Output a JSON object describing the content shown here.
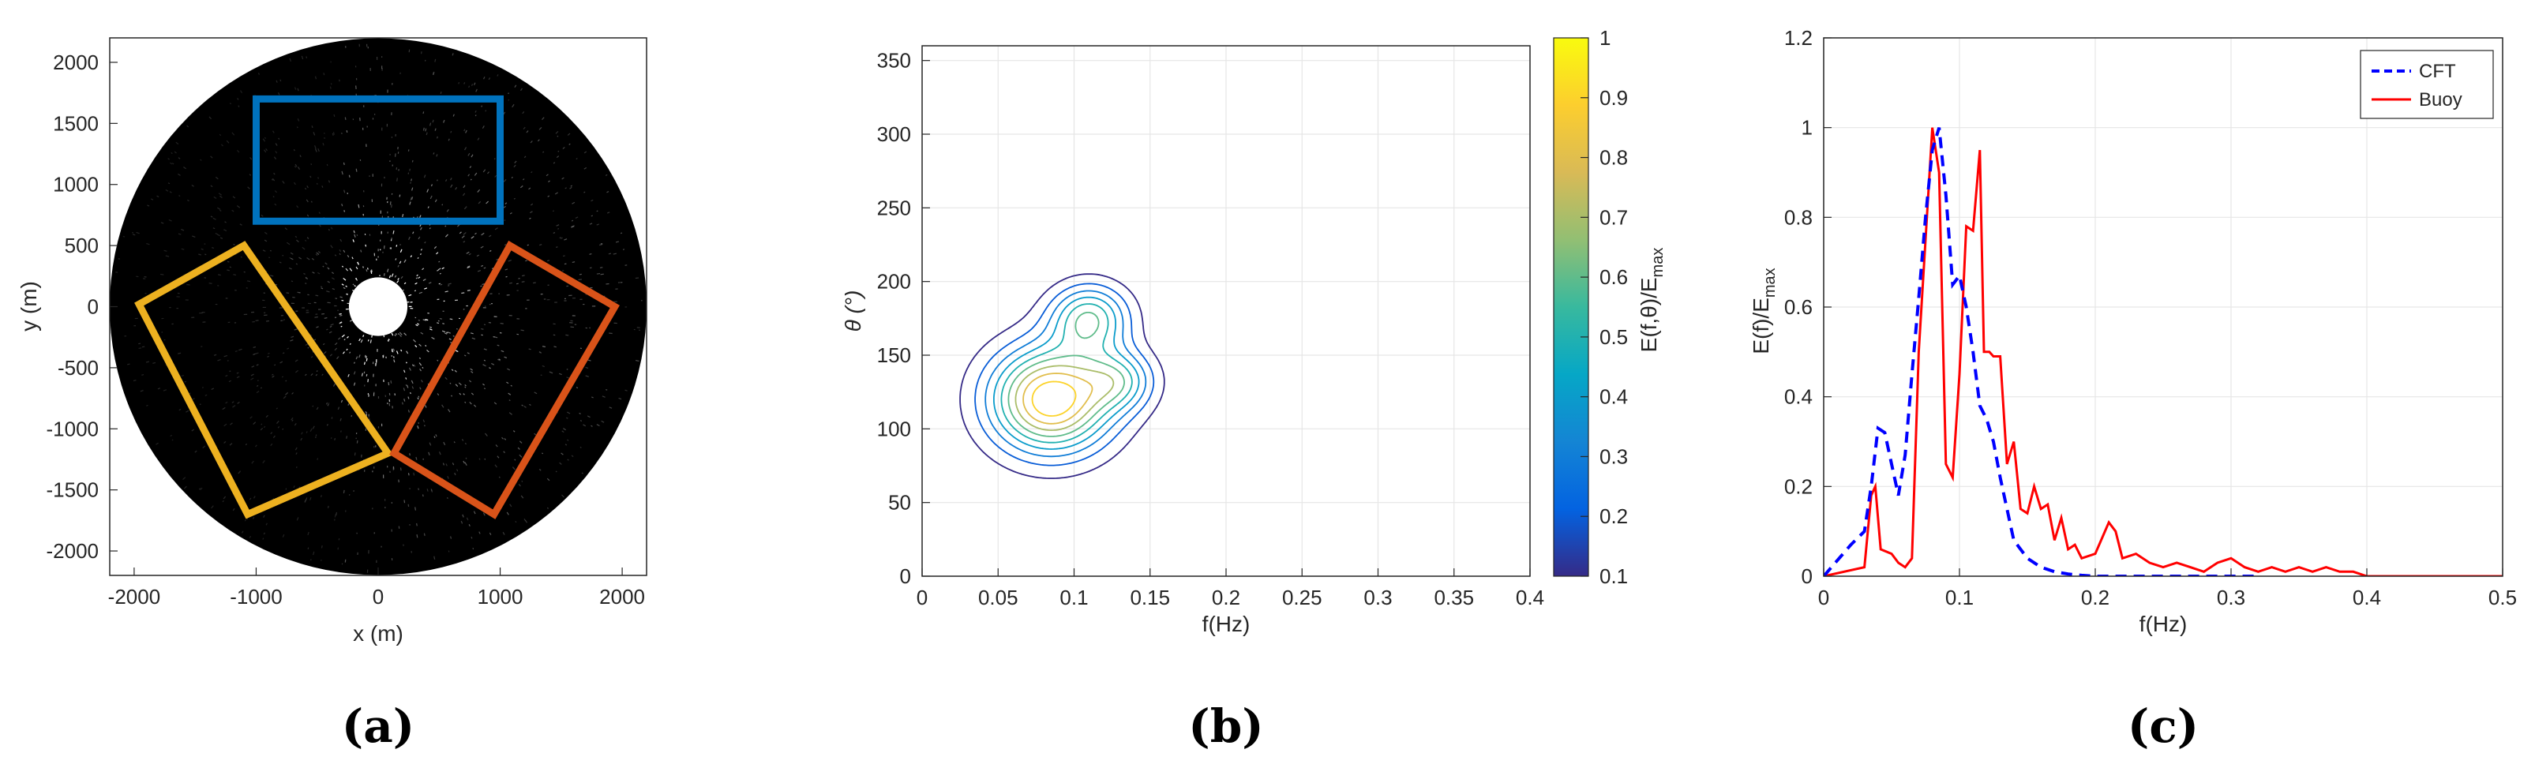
{
  "panels": {
    "a": {
      "label": "(a)"
    },
    "b": {
      "label": "(b)"
    },
    "c": {
      "label": "(c)"
    }
  },
  "colors": {
    "blue_box": "#0072BD",
    "orange_box": "#EDB120",
    "red_box": "#D95319",
    "cft": "#0000FF",
    "buoy": "#FF0000",
    "radar_bg": "#000000"
  },
  "chart_data": [
    {
      "type": "image",
      "panel": "a",
      "xlabel": "x (m)",
      "ylabel": "y (m)",
      "xlim": [
        -2200,
        2200
      ],
      "ylim": [
        -2200,
        2200
      ],
      "xticks": [
        -2000,
        -1000,
        0,
        1000,
        2000
      ],
      "yticks": [
        -2000,
        -1500,
        -1000,
        -500,
        0,
        500,
        1000,
        1500,
        2000
      ],
      "radar_radius": 2200,
      "blind_zone_radius": 240,
      "boxes": [
        {
          "name": "blue",
          "corners": [
            [
              -1000,
              1700
            ],
            [
              1000,
              1700
            ],
            [
              1000,
              700
            ],
            [
              -1000,
              700
            ]
          ]
        },
        {
          "name": "orange",
          "corners": [
            [
              -1960,
              20
            ],
            [
              -1100,
              500
            ],
            [
              80,
              -1200
            ],
            [
              -1070,
              -1700
            ]
          ]
        },
        {
          "name": "red",
          "corners": [
            [
              1080,
              500
            ],
            [
              1940,
              0
            ],
            [
              950,
              -1700
            ],
            [
              130,
              -1200
            ]
          ]
        }
      ]
    },
    {
      "type": "contour",
      "panel": "b",
      "xlabel": "f(Hz)",
      "ylabel": "θ (°)",
      "colorbar_label": "E(f,θ)/E",
      "colorbar_label_sub": "max",
      "xlim": [
        0,
        0.4
      ],
      "ylim": [
        0,
        360
      ],
      "xticks": [
        0,
        0.05,
        0.1,
        0.15,
        0.2,
        0.25,
        0.3,
        0.35,
        0.4
      ],
      "yticks": [
        0,
        50,
        100,
        150,
        200,
        250,
        300,
        350
      ],
      "colorbar_ticks": [
        0.1,
        0.2,
        0.3,
        0.4,
        0.5,
        0.6,
        0.7,
        0.8,
        0.9,
        1
      ],
      "levels": [
        0.1,
        0.2,
        0.3,
        0.4,
        0.5,
        0.6,
        0.7,
        0.8,
        0.9
      ],
      "peaks": [
        {
          "f": 0.085,
          "theta": 120,
          "amp": 0.95,
          "sf": 0.028,
          "st": 25
        },
        {
          "f": 0.11,
          "theta": 175,
          "amp": 0.55,
          "sf": 0.018,
          "st": 16
        },
        {
          "f": 0.13,
          "theta": 133,
          "amp": 0.38,
          "sf": 0.016,
          "st": 14
        }
      ]
    },
    {
      "type": "line",
      "panel": "c",
      "xlabel": "f(Hz)",
      "ylabel": "E(f)/E",
      "ylabel_sub": "max",
      "xlim": [
        0,
        0.5
      ],
      "ylim": [
        0,
        1.2
      ],
      "xticks": [
        0,
        0.1,
        0.2,
        0.3,
        0.4,
        0.5
      ],
      "yticks": [
        0,
        0.2,
        0.4,
        0.6,
        0.8,
        1,
        1.2
      ],
      "legend_position": "top-right",
      "series": [
        {
          "name": "CFT",
          "style": "dashed",
          "x": [
            0,
            0.02,
            0.03,
            0.035,
            0.04,
            0.045,
            0.05,
            0.055,
            0.06,
            0.065,
            0.07,
            0.075,
            0.08,
            0.085,
            0.09,
            0.095,
            0.1,
            0.105,
            0.11,
            0.115,
            0.12,
            0.125,
            0.13,
            0.135,
            0.14,
            0.15,
            0.16,
            0.17,
            0.18,
            0.19,
            0.2,
            0.25,
            0.3,
            0.32
          ],
          "y": [
            0,
            0.07,
            0.1,
            0.2,
            0.33,
            0.32,
            0.25,
            0.18,
            0.27,
            0.45,
            0.62,
            0.8,
            0.95,
            1.0,
            0.85,
            0.65,
            0.67,
            0.6,
            0.5,
            0.38,
            0.35,
            0.3,
            0.22,
            0.15,
            0.08,
            0.04,
            0.02,
            0.01,
            0.005,
            0.002,
            0,
            0,
            0,
            0
          ]
        },
        {
          "name": "Buoy",
          "style": "solid",
          "x": [
            0,
            0.03,
            0.035,
            0.038,
            0.042,
            0.05,
            0.055,
            0.06,
            0.065,
            0.07,
            0.075,
            0.08,
            0.085,
            0.09,
            0.095,
            0.1,
            0.105,
            0.11,
            0.115,
            0.118,
            0.122,
            0.125,
            0.13,
            0.135,
            0.14,
            0.145,
            0.15,
            0.155,
            0.16,
            0.165,
            0.17,
            0.175,
            0.18,
            0.185,
            0.19,
            0.2,
            0.21,
            0.215,
            0.22,
            0.23,
            0.24,
            0.25,
            0.26,
            0.27,
            0.28,
            0.29,
            0.3,
            0.31,
            0.32,
            0.33,
            0.34,
            0.35,
            0.36,
            0.37,
            0.38,
            0.39,
            0.4,
            0.45,
            0.5
          ],
          "y": [
            0,
            0.02,
            0.18,
            0.2,
            0.06,
            0.05,
            0.03,
            0.02,
            0.04,
            0.5,
            0.75,
            1.0,
            0.9,
            0.25,
            0.22,
            0.45,
            0.78,
            0.77,
            0.95,
            0.5,
            0.5,
            0.49,
            0.49,
            0.25,
            0.3,
            0.15,
            0.14,
            0.2,
            0.15,
            0.16,
            0.08,
            0.13,
            0.06,
            0.07,
            0.04,
            0.05,
            0.12,
            0.1,
            0.04,
            0.05,
            0.03,
            0.02,
            0.03,
            0.02,
            0.01,
            0.03,
            0.04,
            0.02,
            0.01,
            0.02,
            0.01,
            0.02,
            0.01,
            0.02,
            0.01,
            0.01,
            0,
            0,
            0
          ]
        }
      ]
    }
  ]
}
